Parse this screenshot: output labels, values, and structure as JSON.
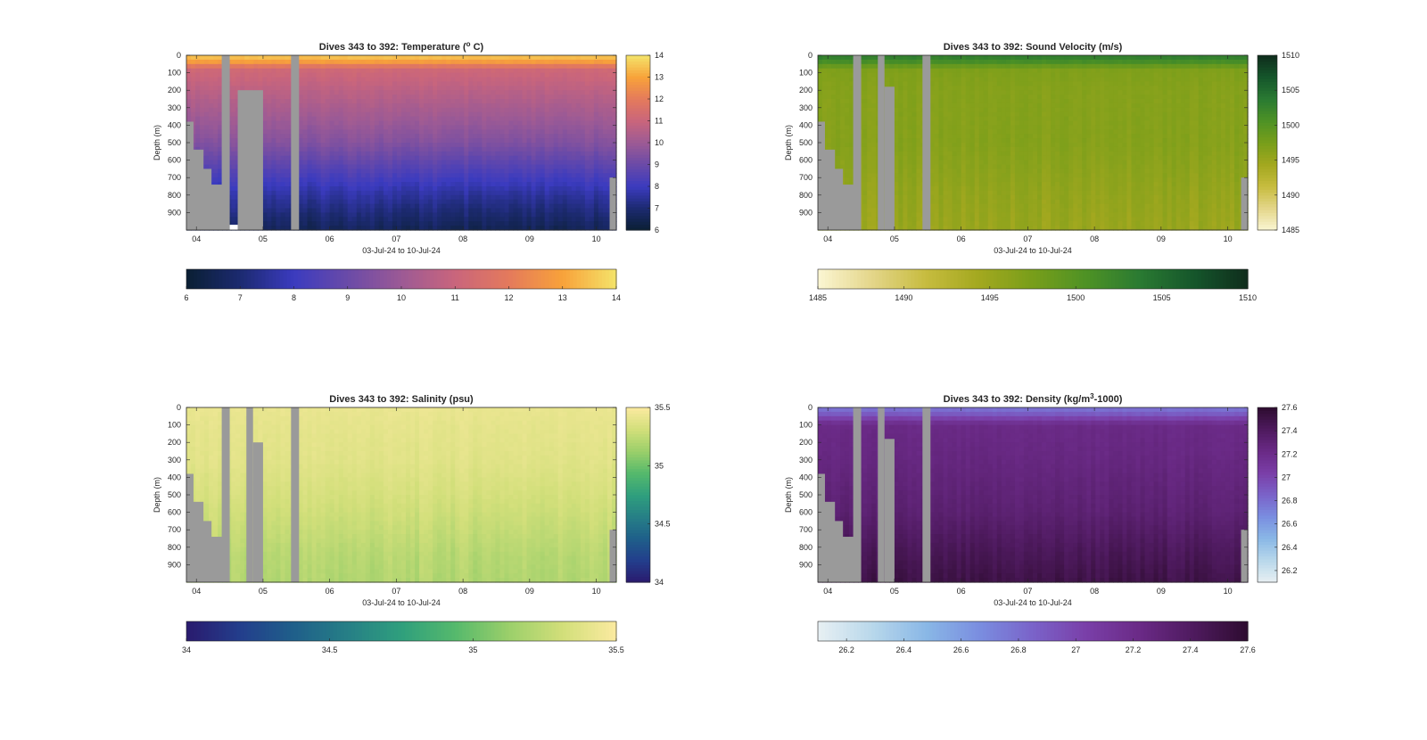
{
  "figure": {
    "colors": {
      "background": "#ffffff",
      "no_data": "#9a9a9a",
      "axis": "#262626"
    }
  },
  "chart_data": [
    {
      "type": "heatmap",
      "title": "Dives 343 to 392: Temperature (",
      "title_sup": "o",
      "title_end": " C)",
      "xlabel": "03-Jul-24 to 10-Jul-24",
      "ylabel": "Depth (m)",
      "x_ticks": [
        "04",
        "05",
        "06",
        "07",
        "08",
        "09",
        "10"
      ],
      "y_ticks": [
        "0",
        "100",
        "200",
        "300",
        "400",
        "500",
        "600",
        "700",
        "800",
        "900"
      ],
      "y_range_m": [
        0,
        1000
      ],
      "x_range_days": [
        3.85,
        10.3
      ],
      "colorbar_range": [
        6,
        14
      ],
      "colorbar_ticks": [
        "6",
        "7",
        "8",
        "9",
        "10",
        "11",
        "12",
        "13",
        "14"
      ],
      "colormap": [
        "#0a1f33",
        "#1c2a70",
        "#3b3bbf",
        "#6a4aa8",
        "#9c5a95",
        "#c9657c",
        "#e47a5c",
        "#f8a23a",
        "#f4e36a"
      ],
      "profile": {
        "depth": [
          0,
          40,
          80,
          200,
          500,
          800,
          1000
        ],
        "value": [
          13.7,
          12.8,
          11.2,
          10.7,
          9.5,
          7.6,
          6.6
        ]
      },
      "gaps": [
        {
          "x": [
            4.38,
            4.5
          ],
          "y": [
            0,
            1000
          ]
        },
        {
          "x": [
            5.42,
            5.54
          ],
          "y": [
            0,
            1000
          ]
        },
        {
          "x": [
            4.62,
            5.0
          ],
          "y": [
            200,
            1000
          ]
        }
      ],
      "bottom_steps": [
        [
          3.85,
          380
        ],
        [
          3.95,
          540
        ],
        [
          4.1,
          650
        ],
        [
          4.22,
          740
        ],
        [
          4.38,
          1000
        ]
      ],
      "right_steps": [
        [
          10.2,
          700
        ]
      ],
      "blank_regions": [
        {
          "x": [
            4.5,
            4.62
          ],
          "y": [
            970,
            1000
          ]
        }
      ]
    },
    {
      "type": "heatmap",
      "title": "Dives 343 to 392: Sound Velocity (m/s)",
      "xlabel": "03-Jul-24 to 10-Jul-24",
      "ylabel": "Depth (m)",
      "x_ticks": [
        "04",
        "05",
        "06",
        "07",
        "08",
        "09",
        "10"
      ],
      "y_ticks": [
        "0",
        "100",
        "200",
        "300",
        "400",
        "500",
        "600",
        "700",
        "800",
        "900"
      ],
      "y_range_m": [
        0,
        1000
      ],
      "x_range_days": [
        3.85,
        10.3
      ],
      "colorbar_range": [
        1485,
        1510
      ],
      "colorbar_ticks": [
        "1485",
        "1490",
        "1495",
        "1500",
        "1505",
        "1510"
      ],
      "colormap": [
        "#fbf6d3",
        "#e4d68a",
        "#c7bc3f",
        "#a3a81f",
        "#789e1a",
        "#4e9225",
        "#2a7a32",
        "#15562b",
        "#0f2d1c"
      ],
      "profile": {
        "depth": [
          0,
          30,
          80,
          200,
          500,
          800,
          1000
        ],
        "value": [
          1503.5,
          1502,
          1497,
          1496.5,
          1496.5,
          1495.5,
          1495
        ]
      },
      "gaps": [
        {
          "x": [
            4.38,
            4.5
          ],
          "y": [
            0,
            1000
          ]
        },
        {
          "x": [
            4.75,
            4.85
          ],
          "y": [
            0,
            1000
          ]
        },
        {
          "x": [
            5.42,
            5.54
          ],
          "y": [
            0,
            1000
          ]
        },
        {
          "x": [
            4.85,
            5.0
          ],
          "y": [
            180,
            1000
          ]
        }
      ],
      "bottom_steps": [
        [
          3.85,
          380
        ],
        [
          3.95,
          540
        ],
        [
          4.1,
          650
        ],
        [
          4.22,
          740
        ],
        [
          4.38,
          1000
        ]
      ],
      "right_steps": [
        [
          10.2,
          700
        ]
      ],
      "blank_regions": []
    },
    {
      "type": "heatmap",
      "title": "Dives 343 to 392: Salinity (psu)",
      "xlabel": "03-Jul-24 to 10-Jul-24",
      "ylabel": "Depth (m)",
      "x_ticks": [
        "04",
        "05",
        "06",
        "07",
        "08",
        "09",
        "10"
      ],
      "y_ticks": [
        "0",
        "100",
        "200",
        "300",
        "400",
        "500",
        "600",
        "700",
        "800",
        "900"
      ],
      "y_range_m": [
        0,
        1000
      ],
      "x_range_days": [
        3.85,
        10.3
      ],
      "colorbar_range": [
        34,
        35.5
      ],
      "colorbar_ticks": [
        "34",
        "34.5",
        "35",
        "35.5"
      ],
      "colormap": [
        "#2a1a6e",
        "#233e8c",
        "#1f5f8a",
        "#267f86",
        "#2f9f7d",
        "#55b96c",
        "#9bcf6a",
        "#d2df7a",
        "#fbeaa0"
      ],
      "profile": {
        "depth": [
          0,
          100,
          300,
          500,
          700,
          850,
          1000
        ],
        "value": [
          35.42,
          35.4,
          35.38,
          35.33,
          35.27,
          35.22,
          35.2
        ]
      },
      "gaps": [
        {
          "x": [
            4.38,
            4.5
          ],
          "y": [
            0,
            1000
          ]
        },
        {
          "x": [
            4.75,
            4.85
          ],
          "y": [
            0,
            1000
          ]
        },
        {
          "x": [
            5.42,
            5.54
          ],
          "y": [
            0,
            1000
          ]
        },
        {
          "x": [
            4.85,
            5.0
          ],
          "y": [
            200,
            1000
          ]
        }
      ],
      "bottom_steps": [
        [
          3.85,
          380
        ],
        [
          3.95,
          540
        ],
        [
          4.1,
          650
        ],
        [
          4.22,
          740
        ],
        [
          4.38,
          1000
        ]
      ],
      "right_steps": [
        [
          10.2,
          700
        ]
      ],
      "blank_regions": []
    },
    {
      "type": "heatmap",
      "title": "Dives 343 to 392: Density (kg/m",
      "title_sup": "3",
      "title_end": "-1000)",
      "xlabel": "03-Jul-24 to 10-Jul-24",
      "ylabel": "Depth (m)",
      "x_ticks": [
        "04",
        "05",
        "06",
        "07",
        "08",
        "09",
        "10"
      ],
      "y_ticks": [
        "0",
        "100",
        "200",
        "300",
        "400",
        "500",
        "600",
        "700",
        "800",
        "900"
      ],
      "y_range_m": [
        0,
        1000
      ],
      "x_range_days": [
        3.85,
        10.3
      ],
      "colorbar_range": [
        26.1,
        27.6
      ],
      "colorbar_ticks": [
        "26.2",
        "26.4",
        "26.6",
        "26.8",
        "27",
        "27.2",
        "27.4",
        "27.6"
      ],
      "colormap": [
        "#e8f0f3",
        "#b9d8eb",
        "#8ab8e6",
        "#7a8ee0",
        "#7a63c9",
        "#7a3fa8",
        "#6a2a86",
        "#4e1a5e",
        "#2e0c30"
      ],
      "profile": {
        "depth": [
          0,
          40,
          100,
          300,
          600,
          800,
          1000
        ],
        "value": [
          26.75,
          26.9,
          27.22,
          27.25,
          27.32,
          27.42,
          27.5
        ]
      },
      "gaps": [
        {
          "x": [
            4.38,
            4.5
          ],
          "y": [
            0,
            1000
          ]
        },
        {
          "x": [
            4.75,
            4.85
          ],
          "y": [
            0,
            1000
          ]
        },
        {
          "x": [
            5.42,
            5.54
          ],
          "y": [
            0,
            1000
          ]
        },
        {
          "x": [
            4.85,
            5.0
          ],
          "y": [
            180,
            1000
          ]
        }
      ],
      "bottom_steps": [
        [
          3.85,
          380
        ],
        [
          3.95,
          540
        ],
        [
          4.1,
          650
        ],
        [
          4.22,
          740
        ],
        [
          4.38,
          1000
        ]
      ],
      "right_steps": [
        [
          10.2,
          700
        ]
      ],
      "blank_regions": []
    }
  ]
}
